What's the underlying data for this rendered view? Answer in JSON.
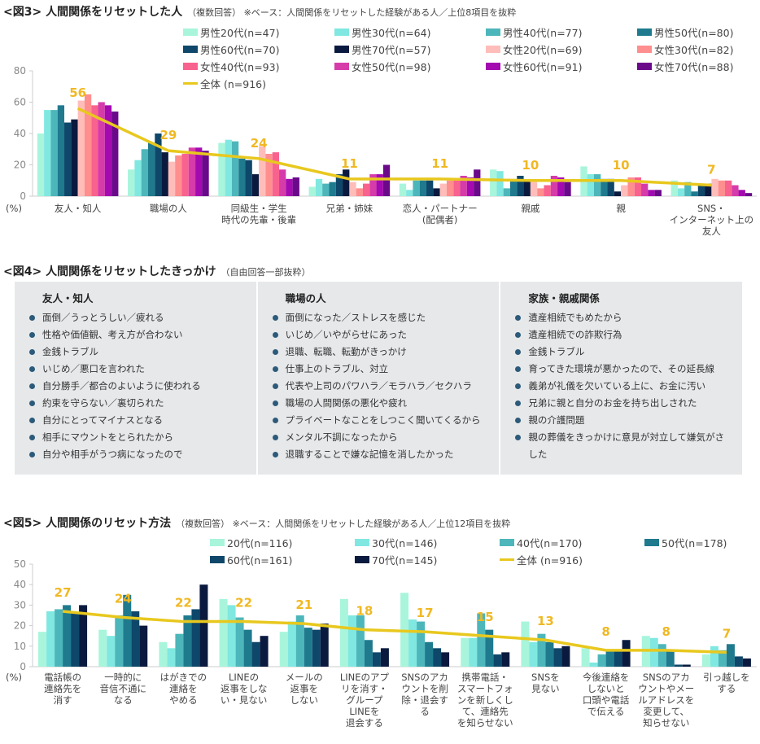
{
  "fig3": {
    "title": "<図3> 人間関係をリセットした人",
    "subtitle": "（複数回答） ※ベース：人間関係をリセットした経験がある人／上位8項目を抜粋"
  },
  "fig4": {
    "title": "<図4> 人間関係をリセットしたきっかけ",
    "subtitle": "（自由回答一部抜粋）",
    "columns": [
      {
        "heading": "友人・知人",
        "items": [
          "面倒／うっとうしい／疲れる",
          "性格や価値観、考え方が合わない",
          "金銭トラブル",
          "いじめ／悪口を言われた",
          "自分勝手／都合のよいように使われる",
          "約束を守らない／裏切られた",
          "自分にとってマイナスとなる",
          "相手にマウントをとられたから",
          "自分や相手がうつ病になったので"
        ]
      },
      {
        "heading": "職場の人",
        "items": [
          "面倒になった／ストレスを感じた",
          "いじめ／いやがらせにあった",
          "退職、転職、転勤がきっかけ",
          "仕事上のトラブル、対立",
          "代表や上司のパワハラ／モラハラ／セクハラ",
          "職場の人間関係の悪化や疲れ",
          "プライベートなことをしつこく聞いてくるから",
          "メンタル不調になったから",
          "退職することで嫌な記憶を消したかった"
        ]
      },
      {
        "heading": "家族・親戚関係",
        "items": [
          "遺産相続でもめたから",
          "遺産相続での詐欺行為",
          "金銭トラブル",
          "育ってきた環境が悪かったので、その延長線",
          "義弟が礼儀を欠いている上に、お金に汚い",
          "兄弟に親と自分のお金を持ち出しされた",
          "親の介護問題",
          "親の葬儀をきっかけに意見が対立して嫌気がさした"
        ]
      }
    ]
  },
  "fig5": {
    "title": "<図5> 人間関係のリセット方法",
    "subtitle": "（複数回答） ※ベース：人間関係をリセットした経験がある人／上位12項目を抜粋"
  },
  "chart_data": [
    {
      "type": "bar",
      "ylabel": "(%)",
      "ylim": [
        0,
        80
      ],
      "yticks": [
        0,
        20,
        40,
        60,
        80
      ],
      "grid": false,
      "legend": "top-right",
      "categories": [
        "友人・知人",
        "職場の人",
        "同級生・学生\n時代の先輩・後輩",
        "兄弟・姉妹",
        "恋人・パートナー\n(配偶者)",
        "親戚",
        "親",
        "SNS・\nインターネット上の\n友人"
      ],
      "series": [
        {
          "name": "男性20代(n=47)",
          "color": "#A8F5DC",
          "values": [
            40,
            17,
            34,
            6,
            8,
            17,
            19,
            10
          ]
        },
        {
          "name": "男性30代(n=64)",
          "color": "#80E8E0",
          "values": [
            55,
            23,
            36,
            11,
            4,
            16,
            14,
            5
          ]
        },
        {
          "name": "男性40代(n=77)",
          "color": "#4DB6BA",
          "values": [
            55,
            30,
            35,
            8,
            10,
            5,
            14,
            9
          ]
        },
        {
          "name": "男性50代(n=80)",
          "color": "#1F7A8E",
          "values": [
            58,
            34,
            24,
            9,
            10,
            10,
            11,
            3
          ]
        },
        {
          "name": "男性60代(n=70)",
          "color": "#0E476A",
          "values": [
            47,
            40,
            23,
            14,
            10,
            13,
            11,
            8
          ]
        },
        {
          "name": "男性70代(n=57)",
          "color": "#0A1A3F",
          "values": [
            49,
            28,
            14,
            17,
            5,
            10,
            3,
            8
          ]
        },
        {
          "name": "女性20代(n=69)",
          "color": "#FFBDBA",
          "values": [
            61,
            22,
            32,
            9,
            8,
            9,
            7,
            11
          ]
        },
        {
          "name": "女性30代(n=82)",
          "color": "#FF8E8E",
          "values": [
            65,
            26,
            27,
            5,
            10,
            5,
            12,
            10
          ]
        },
        {
          "name": "女性40代(n=93)",
          "color": "#F8628F",
          "values": [
            58,
            27,
            28,
            8,
            10,
            7,
            12,
            10
          ]
        },
        {
          "name": "女性50代(n=98)",
          "color": "#D63BAA",
          "values": [
            60,
            31,
            17,
            14,
            13,
            13,
            8,
            7
          ]
        },
        {
          "name": "女性60代(n=91)",
          "color": "#A30AB0",
          "values": [
            58,
            31,
            11,
            14,
            12,
            12,
            4,
            4
          ]
        },
        {
          "name": "女性70代(n=88)",
          "color": "#6A0A8A",
          "values": [
            54,
            29,
            12,
            20,
            17,
            9,
            4,
            2
          ]
        }
      ],
      "line": {
        "name": "全体 (n=916)",
        "color": "#E8C81E",
        "label_color": "#F0B823",
        "values": [
          56,
          29,
          24,
          11,
          11,
          10,
          10,
          7
        ]
      }
    },
    {
      "type": "bar",
      "ylabel": "(%)",
      "ylim": [
        0,
        50
      ],
      "yticks": [
        0,
        10,
        20,
        30,
        40,
        50
      ],
      "grid": false,
      "legend": "top-right",
      "categories": [
        "電話帳の\n連絡先を\n消す",
        "一時的に\n音信不通に\nなる",
        "はがきでの\n連絡を\nやめる",
        "LINEの\n返事をしな\nい・見ない",
        "メールの\n返事を\nしない",
        "LINEのアプ\nリを消す・\nグループ\nLINEを\n退会する",
        "SNSのアカ\nウントを削\n除・退会す\nる",
        "携帯電話・\nスマートフォ\nンを新しくし\nて、連絡先\nを知らせない",
        "SNSを\n見ない",
        "今後連絡を\nしないと\n口頭や電話\nで伝える",
        "SNSのアカ\nウントやメー\nルアドレスを\n変更して、\n知らせない",
        "引っ越しを\nする"
      ],
      "series": [
        {
          "name": "20代(n=116)",
          "color": "#A8F5DC",
          "values": [
            17,
            18,
            12,
            33,
            17,
            33,
            36,
            14,
            22,
            9,
            15,
            6
          ]
        },
        {
          "name": "30代(n=146)",
          "color": "#80E8E0",
          "values": [
            27,
            15,
            9,
            30,
            22,
            25,
            23,
            14,
            12,
            2,
            14,
            10
          ]
        },
        {
          "name": "40代(n=170)",
          "color": "#4DB6BA",
          "values": [
            28,
            25,
            16,
            24,
            25,
            25,
            22,
            26,
            16,
            6,
            11,
            8
          ]
        },
        {
          "name": "50代(n=178)",
          "color": "#1F7A8E",
          "values": [
            30,
            35,
            25,
            18,
            19,
            13,
            12,
            18,
            12,
            8,
            8,
            11
          ]
        },
        {
          "name": "60代(n=161)",
          "color": "#0E476A",
          "values": [
            26,
            27,
            28,
            12,
            18,
            7,
            9,
            6,
            9,
            8,
            1,
            5
          ]
        },
        {
          "name": "70代(n=145)",
          "color": "#0A1A3F",
          "values": [
            30,
            20,
            40,
            15,
            21,
            9,
            7,
            7,
            10,
            13,
            1,
            4
          ]
        }
      ],
      "line": {
        "name": "全体 (n=916)",
        "color": "#E8C81E",
        "label_color": "#F0B823",
        "values": [
          27,
          24,
          22,
          22,
          21,
          18,
          17,
          15,
          13,
          8,
          8,
          7
        ]
      }
    }
  ]
}
